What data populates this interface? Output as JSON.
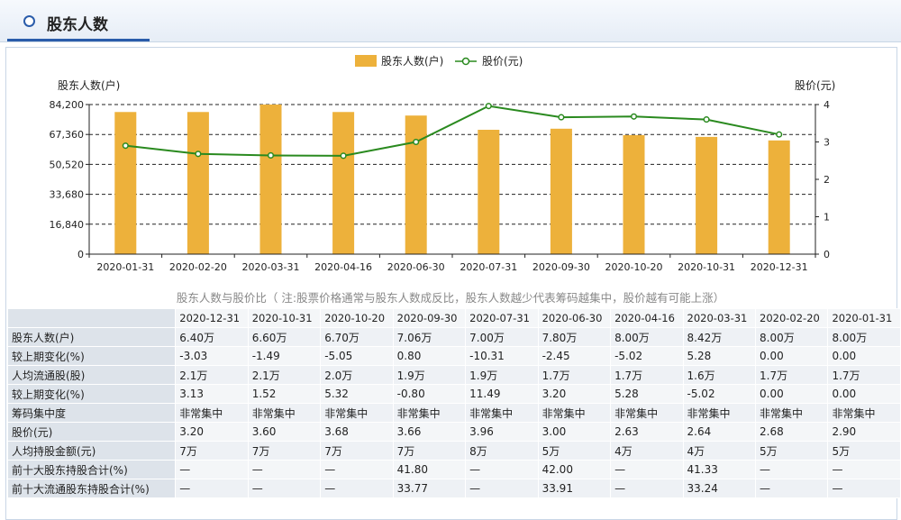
{
  "header": {
    "title": "股东人数"
  },
  "legend": {
    "bar_label": "股东人数(户)",
    "line_label": "股价(元)"
  },
  "note": "股东人数与股价比（ 注:股票价格通常与股东人数成反比，股东人数越少代表筹码越集中，股价越有可能上涨）",
  "colors": {
    "bar": "#edb13b",
    "line": "#2a8a1f",
    "accent": "#2a5caa"
  },
  "chart_data": {
    "type": "bar",
    "categories": [
      "2020-01-31",
      "2020-02-20",
      "2020-03-31",
      "2020-04-16",
      "2020-06-30",
      "2020-07-31",
      "2020-09-30",
      "2020-10-20",
      "2020-10-31",
      "2020-12-31"
    ],
    "series": [
      {
        "name": "股东人数(户)",
        "type": "bar",
        "axis": "left",
        "values": [
          80000,
          80000,
          84200,
          80000,
          78000,
          70000,
          70600,
          67000,
          66000,
          64000
        ]
      },
      {
        "name": "股价(元)",
        "type": "line",
        "axis": "right",
        "values": [
          2.9,
          2.68,
          2.64,
          2.63,
          3.0,
          3.96,
          3.66,
          3.68,
          3.6,
          3.2
        ]
      }
    ],
    "ylabel": "股东人数(户)",
    "y2label": "股价(元)",
    "ylim": [
      0,
      84200
    ],
    "yticks": [
      "0",
      "16,840",
      "33,680",
      "50,520",
      "67,360",
      "84,200"
    ],
    "y2lim": [
      0,
      4
    ],
    "y2ticks": [
      "0",
      "1",
      "2",
      "3",
      "4"
    ],
    "grid": true,
    "legend": "top-center"
  },
  "table": {
    "columns": [
      "2020-12-31",
      "2020-10-31",
      "2020-10-20",
      "2020-09-30",
      "2020-07-31",
      "2020-06-30",
      "2020-04-16",
      "2020-03-31",
      "2020-02-20",
      "2020-01-31"
    ],
    "rows": [
      {
        "label": "股东人数(户)",
        "values": [
          "6.40万",
          "6.60万",
          "6.70万",
          "7.06万",
          "7.00万",
          "7.80万",
          "8.00万",
          "8.42万",
          "8.00万",
          "8.00万"
        ]
      },
      {
        "label": "较上期变化(%)",
        "values": [
          "-3.03",
          "-1.49",
          "-5.05",
          "0.80",
          "-10.31",
          "-2.45",
          "-5.02",
          "5.28",
          "0.00",
          "0.00"
        ]
      },
      {
        "label": "人均流通股(股)",
        "values": [
          "2.1万",
          "2.1万",
          "2.0万",
          "1.9万",
          "1.9万",
          "1.7万",
          "1.7万",
          "1.6万",
          "1.7万",
          "1.7万"
        ]
      },
      {
        "label": "较上期变化(%)",
        "values": [
          "3.13",
          "1.52",
          "5.32",
          "-0.80",
          "11.49",
          "3.20",
          "5.28",
          "-5.02",
          "0.00",
          "0.00"
        ]
      },
      {
        "label": "筹码集中度",
        "values": [
          "非常集中",
          "非常集中",
          "非常集中",
          "非常集中",
          "非常集中",
          "非常集中",
          "非常集中",
          "非常集中",
          "非常集中",
          "非常集中"
        ]
      },
      {
        "label": "股价(元)",
        "values": [
          "3.20",
          "3.60",
          "3.68",
          "3.66",
          "3.96",
          "3.00",
          "2.63",
          "2.64",
          "2.68",
          "2.90"
        ]
      },
      {
        "label": "人均持股金额(元)",
        "values": [
          "7万",
          "7万",
          "7万",
          "7万",
          "8万",
          "5万",
          "4万",
          "4万",
          "5万",
          "5万"
        ]
      },
      {
        "label": "前十大股东持股合计(%)",
        "values": [
          "—",
          "—",
          "—",
          "41.80",
          "—",
          "42.00",
          "—",
          "41.33",
          "—",
          "—"
        ]
      },
      {
        "label": "前十大流通股东持股合计(%)",
        "values": [
          "—",
          "—",
          "—",
          "33.77",
          "—",
          "33.91",
          "—",
          "33.24",
          "—",
          "—"
        ]
      }
    ]
  }
}
